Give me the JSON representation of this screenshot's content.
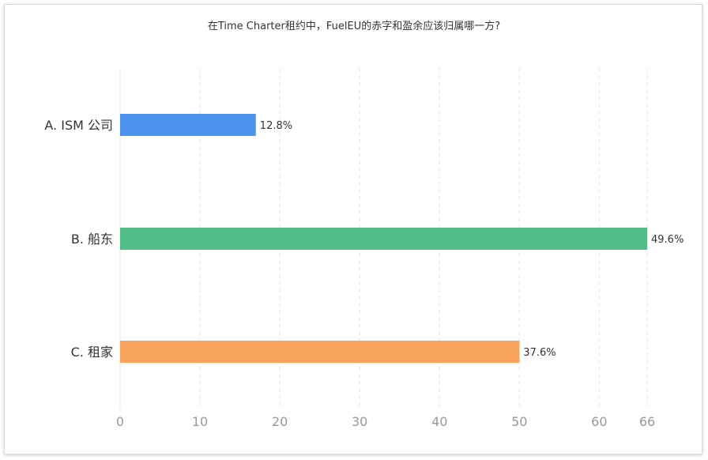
{
  "chart_data": {
    "type": "bar",
    "orientation": "horizontal",
    "title": "在Time Charter租约中，FuelEU的赤字和盈余应该归属哪一方?",
    "categories": [
      "A. ISM 公司",
      "B. 船东",
      "C. 租家"
    ],
    "values": [
      17,
      66,
      50
    ],
    "data_labels": [
      "12.8%",
      "49.6%",
      "37.6%"
    ],
    "colors": [
      "#4c93ee",
      "#52be87",
      "#f7a35c"
    ],
    "x_ticks": [
      "0",
      "10",
      "20",
      "30",
      "40",
      "50",
      "60",
      "66"
    ],
    "xlim": [
      0,
      66
    ],
    "grid": true,
    "legend": "none"
  }
}
